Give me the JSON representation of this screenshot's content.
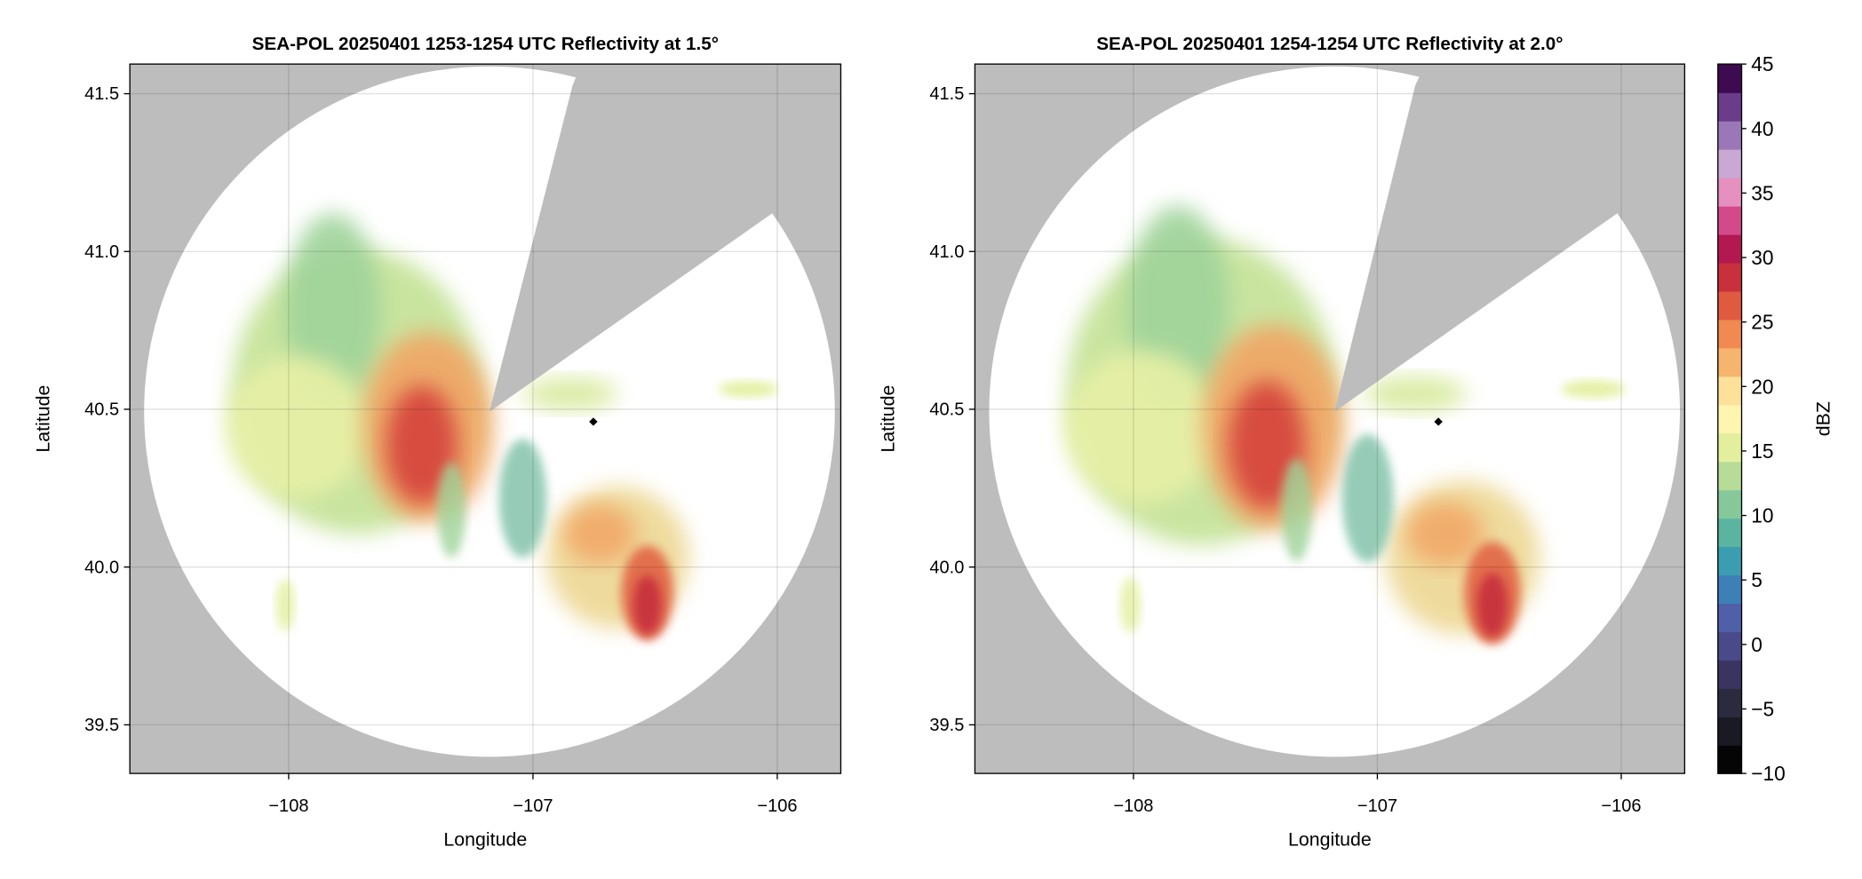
{
  "chart_data": [
    {
      "type": "map",
      "title": "SEA-POL 20250401 1253-1254 UTC Reflectivity at 1.5°",
      "xlabel": "Longitude",
      "ylabel": "Latitude",
      "xlim": [
        -108.65,
        -105.74
      ],
      "ylim": [
        39.346,
        41.594
      ],
      "xticks": [
        {
          "value": -108,
          "label": "−108"
        },
        {
          "value": -107,
          "label": "−107"
        },
        {
          "value": -106,
          "label": "−106"
        }
      ],
      "yticks": [
        {
          "value": 39.5,
          "label": "39.5"
        },
        {
          "value": 40,
          "label": "40.0"
        },
        40.5,
        {
          "value": 41,
          "label": "41.0"
        },
        41.5
      ],
      "grid": true
    },
    {
      "type": "map",
      "title": "SEA-POL 20250401 1254-1254 UTC Reflectivity at 2.0°",
      "xlabel": "Longitude",
      "ylabel": "Latitude",
      "xlim": [
        -108.65,
        -105.74
      ],
      "ylim": [
        39.346,
        41.594
      ],
      "xticks": [
        {
          "value": -108,
          "label": "−108"
        },
        {
          "value": -107,
          "label": "−107"
        },
        {
          "value": -106,
          "label": "−106"
        }
      ],
      "yticks": [
        {
          "value": 39.5,
          "label": "39.5"
        },
        {
          "value": 40,
          "label": "40.0"
        },
        40.5,
        {
          "value": 41,
          "label": "41.0"
        },
        41.5
      ],
      "grid": true
    },
    {
      "type": "colorbar",
      "label": "dBZ",
      "ylim": [
        -10,
        45
      ],
      "yticks": [
        {
          "value": -10,
          "label": "−10"
        },
        {
          "value": -5,
          "label": "−5"
        },
        0,
        5,
        10,
        15,
        20,
        25,
        30,
        35,
        40,
        45
      ],
      "colors": [
        "#050505",
        "#1a1a24",
        "#2b2b40",
        "#3a3560",
        "#4a4a8a",
        "#5060a8",
        "#3d80b8",
        "#3a9eb0",
        "#5ab4a0",
        "#86c89a",
        "#b6dc98",
        "#e3ef9c",
        "#fdf5b0",
        "#fde09a",
        "#f7b46c",
        "#f08a50",
        "#e05a40",
        "#c8303c",
        "#b41850",
        "#d24a8a",
        "#e690c0",
        "#c9a8d4",
        "#9a78b8",
        "#6a3c8a",
        "#3e0a50"
      ]
    }
  ]
}
